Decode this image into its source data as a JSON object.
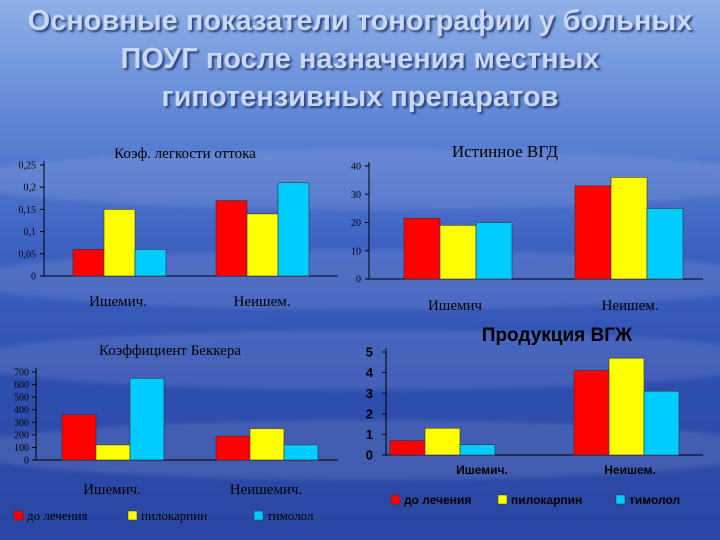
{
  "title": "Основные показатели тонографии у больных ПОУГ после назначения местных гипотензивных препаратов",
  "colors": {
    "c1": "#ff0000",
    "c2": "#ffff00",
    "c3": "#00ccff"
  },
  "chart_data": [
    {
      "type": "bar",
      "title": "Коэф. легкости оттока",
      "categories": [
        "Ишемич.",
        "Неишем."
      ],
      "series": [
        {
          "name": "до лечения",
          "values": [
            0.06,
            0.17
          ]
        },
        {
          "name": "пилокарпин",
          "values": [
            0.15,
            0.14
          ]
        },
        {
          "name": "тимолол",
          "values": [
            0.06,
            0.21
          ]
        }
      ],
      "ylim": [
        0,
        0.25
      ],
      "yticks": [
        "0",
        "0,05",
        "0,1",
        "0,15",
        "0,2",
        "0,25"
      ]
    },
    {
      "type": "bar",
      "title": "Истинное ВГД",
      "categories": [
        "Ишемич",
        "Неишем."
      ],
      "series": [
        {
          "name": "до лечения",
          "values": [
            21.5,
            33
          ]
        },
        {
          "name": "пилокарпин",
          "values": [
            19,
            36
          ]
        },
        {
          "name": "тимолол",
          "values": [
            20,
            25
          ]
        }
      ],
      "ylim": [
        0,
        40
      ],
      "yticks": [
        "0",
        "10",
        "20",
        "30",
        "40"
      ]
    },
    {
      "type": "bar",
      "title": "Коэффициент Беккера",
      "categories": [
        "Ишемич.",
        "Неишемич."
      ],
      "series": [
        {
          "name": "до лечения",
          "values": [
            360,
            190
          ]
        },
        {
          "name": "пилокарпин",
          "values": [
            120,
            250
          ]
        },
        {
          "name": "тимолол",
          "values": [
            650,
            120
          ]
        }
      ],
      "ylim": [
        0,
        700
      ],
      "yticks": [
        "0",
        "100",
        "200",
        "300",
        "400",
        "500",
        "600",
        "700"
      ]
    },
    {
      "type": "bar",
      "title": "Продукция ВГЖ",
      "categories": [
        "Ишемич.",
        "Неишем."
      ],
      "series": [
        {
          "name": "до лечения",
          "values": [
            0.7,
            4.1
          ]
        },
        {
          "name": "пилокарпин",
          "values": [
            1.3,
            4.7
          ]
        },
        {
          "name": "тимолол",
          "values": [
            0.5,
            3.1
          ]
        }
      ],
      "ylim": [
        0,
        5
      ],
      "yticks": [
        "0",
        "1",
        "2",
        "3",
        "4",
        "5"
      ]
    }
  ]
}
